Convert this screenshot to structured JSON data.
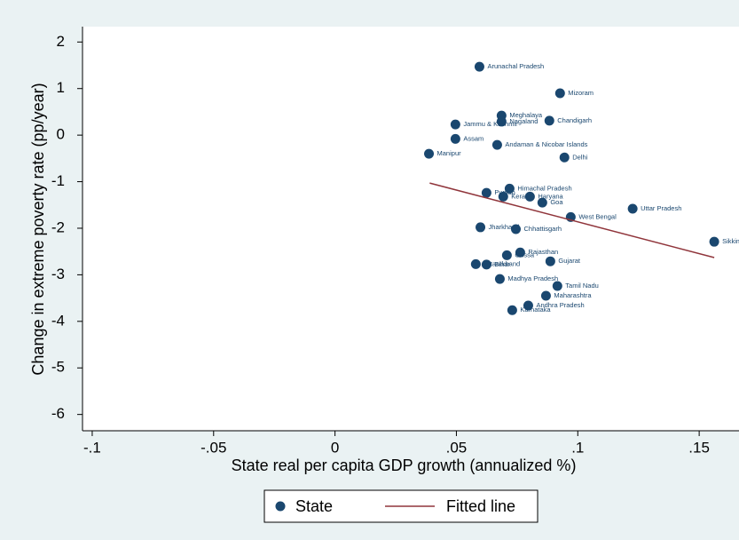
{
  "chart_data": {
    "type": "scatter",
    "xlabel": "State real per capita GDP growth (annualized %)",
    "ylabel": "Change in extreme poverty rate (pp/year)",
    "xlim": [
      -0.104,
      0.1664
    ],
    "ylim": [
      -6.35,
      2.33
    ],
    "xticks": [
      {
        "value": -0.1,
        "label": "-.1"
      },
      {
        "value": -0.05,
        "label": "-.05"
      },
      {
        "value": 0,
        "label": "0"
      },
      {
        "value": 0.05,
        "label": ".05"
      },
      {
        "value": 0.1,
        "label": ".1"
      },
      {
        "value": 0.15,
        "label": ".15"
      }
    ],
    "yticks": [
      2,
      1,
      0,
      -1,
      -2,
      -3,
      -4,
      -5,
      -6
    ],
    "series": [
      {
        "name": "State",
        "color": "#1a476f",
        "labels": [
          "Arunachal Pradesh",
          "Mizoram",
          "Meghalaya",
          "Nagaland",
          "Chandigarh",
          "Jammu & Kashmir",
          "Assam",
          "Andaman & Nicobar Islands",
          "Delhi",
          "Manipur",
          "Himachal Pradesh",
          "Punjab",
          "Kerala",
          "Haryana",
          "Goa",
          "Uttar Pradesh",
          "West Bengal",
          "Sikkim",
          "Jharkhand",
          "Chhattisgarh",
          "Rajasthan",
          "Orissa",
          "Gujarat",
          "Uttarakhand",
          "Bihar",
          "Madhya Pradesh",
          "Tamil Nadu",
          "Maharashtra",
          "Andhra Pradesh",
          "Karnataka"
        ],
        "x": [
          0.0595,
          0.0927,
          0.0686,
          0.0686,
          0.0883,
          0.0496,
          0.0496,
          0.0668,
          0.0945,
          0.0387,
          0.0719,
          0.0624,
          0.0693,
          0.0803,
          0.0854,
          0.1226,
          0.0971,
          0.1562,
          0.0599,
          0.0745,
          0.0763,
          0.0708,
          0.0887,
          0.058,
          0.0624,
          0.0679,
          0.0916,
          0.0869,
          0.0796,
          0.073
        ],
        "values": [
          1.47,
          0.9,
          0.42,
          0.29,
          0.31,
          0.23,
          -0.08,
          -0.21,
          -0.48,
          -0.4,
          -1.15,
          -1.24,
          -1.32,
          -1.32,
          -1.45,
          -1.58,
          -1.76,
          -2.29,
          -1.98,
          -2.02,
          -2.52,
          -2.58,
          -2.71,
          -2.77,
          -2.78,
          -3.09,
          -3.24,
          -3.45,
          -3.66,
          -3.76
        ]
      },
      {
        "name": "Fitted line",
        "type": "line",
        "color": "#90353b",
        "x": [
          0.039,
          0.1562
        ],
        "values": [
          -1.03,
          -2.63
        ]
      }
    ]
  }
}
